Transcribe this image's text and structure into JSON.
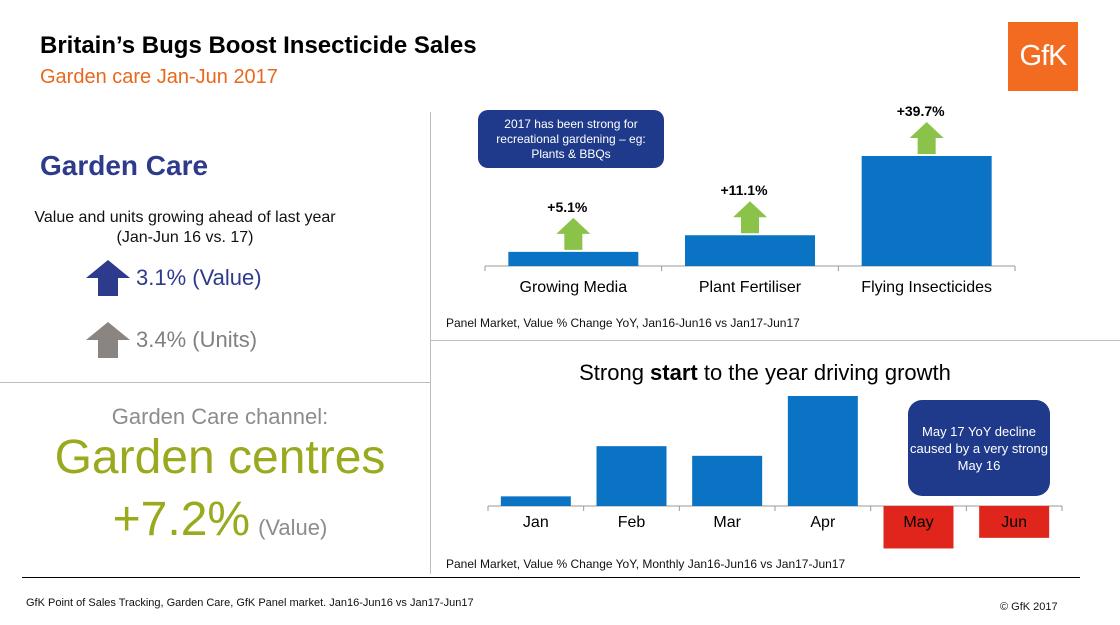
{
  "header": {
    "title": "Britain’s Bugs Boost Insecticide Sales",
    "subtitle": "Garden care Jan-Jun 2017",
    "logo_text": "GfK"
  },
  "left_panel": {
    "heading": "Garden Care",
    "description": "Value and units growing ahead of last year (Jan-Jun 16 vs. 17)",
    "stats": [
      {
        "value": "3.1%",
        "label": "(Value)",
        "text": "3.1% (Value)",
        "color": "#2e3a8c",
        "icon": "up-arrow-icon"
      },
      {
        "value": "3.4%",
        "label": "(Units)",
        "text": "3.4% (Units)",
        "color": "#8a8580",
        "icon": "up-arrow-icon"
      }
    ],
    "channel_label": "Garden Care channel:",
    "channel_name": "Garden centres",
    "channel_pct": "+7.2%",
    "channel_unit": "(Value)"
  },
  "callouts": {
    "chart1": "2017 has been strong for recreational gardening – eg: Plants & BBQs",
    "chart2": "May 17 YoY decline caused by a very strong May 16"
  },
  "chart_data": [
    {
      "type": "bar",
      "categories": [
        "Growing Media",
        "Plant Fertiliser",
        "Flying Insecticides"
      ],
      "values": [
        5.1,
        11.1,
        39.7
      ],
      "data_labels": [
        "+5.1%",
        "+11.1%",
        "+39.7%"
      ],
      "note": "Panel Market, Value % Change YoY, Jan16-Jun16 vs Jan17-Jun17",
      "colors": {
        "bar": "#0b73c4",
        "arrow": "#8bc34a"
      }
    },
    {
      "type": "bar",
      "title_pre": "Strong ",
      "title_bold": "start",
      "title_post": " to the year driving growth",
      "categories": [
        "Jan",
        "Feb",
        "Mar",
        "Apr",
        "May",
        "Jun"
      ],
      "values": [
        1,
        6.2,
        5.2,
        11.4,
        -4.4,
        -3.3
      ],
      "highlight": [
        false,
        false,
        false,
        false,
        true,
        true
      ],
      "note": "Panel Market, Value % Change YoY, Monthly Jan16-Jun16 vs Jan17-Jun17",
      "colors": {
        "bar": "#0b73c4",
        "negative": "#e0251c"
      }
    }
  ],
  "footer": {
    "source": "GfK Point of Sales Tracking, Garden Care, GfK Panel market. Jan16-Jun16 vs Jan17-Jun17",
    "copyright": "© GfK 2017"
  }
}
